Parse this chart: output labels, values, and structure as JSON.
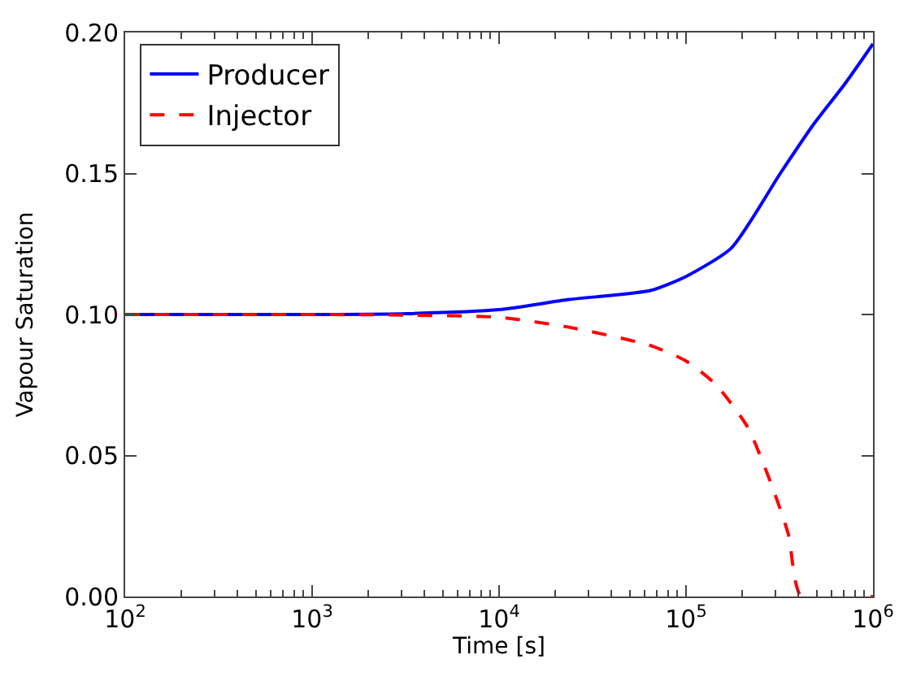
{
  "chart_data": {
    "type": "line",
    "xlabel": "Time [s]",
    "ylabel": "Vapour Saturation",
    "log": "x",
    "xlim": [
      100,
      1000000
    ],
    "ylim": [
      0,
      0.2
    ],
    "xticks": [
      {
        "value": 100,
        "label": "10$^{2}$"
      },
      {
        "value": 1000,
        "label": "10$^{3}$"
      },
      {
        "value": 10000,
        "label": "10$^{4}$"
      },
      {
        "value": 100000,
        "label": "10$^{5}$"
      },
      {
        "value": 1000000,
        "label": "10$^{6}$"
      }
    ],
    "yticks": [
      {
        "value": 0,
        "label": "0.00"
      },
      {
        "value": 0.05,
        "label": "0.05"
      },
      {
        "value": 0.1,
        "label": "0.10"
      },
      {
        "value": 0.15,
        "label": "0.15"
      },
      {
        "value": 0.2,
        "label": "0.20"
      }
    ],
    "legend": "top left",
    "series": [
      {
        "name": "Producer",
        "color": "#0000ff",
        "line_style": "solid",
        "x": [
          100,
          1000,
          3190,
          10000,
          23660,
          64400,
          100000,
          175000,
          319000,
          476000,
          711000,
          1000000
        ],
        "values": [
          0.1,
          0.1,
          0.1003,
          0.1017,
          0.1053,
          0.1085,
          0.1135,
          0.1236,
          0.15,
          0.167,
          0.182,
          0.196
        ]
      },
      {
        "name": "Injector",
        "color": "#ff0000",
        "line_style": "dashed",
        "x": [
          100,
          1000,
          3190,
          10000,
          23660,
          64400,
          100000,
          143600,
          213800,
          289000,
          353000,
          414000,
          1000000
        ],
        "values": [
          0.1,
          0.1,
          0.0998,
          0.099,
          0.0955,
          0.089,
          0.0835,
          0.0753,
          0.06,
          0.039,
          0.022,
          0,
          0
        ]
      }
    ]
  }
}
